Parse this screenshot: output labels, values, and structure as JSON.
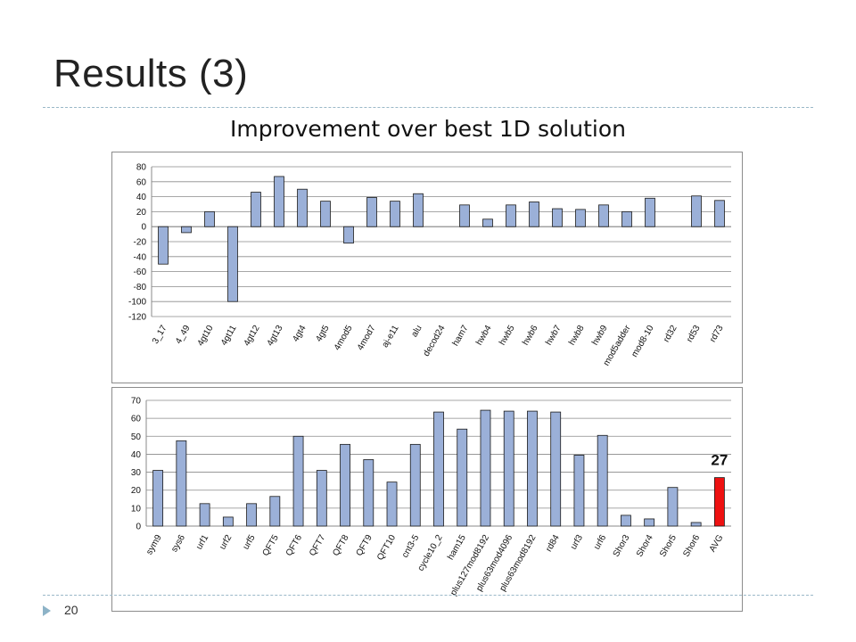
{
  "slide": {
    "title": "Results (3)",
    "subtitle": "Improvement over best 1D solution",
    "page_number": "20"
  },
  "colors": {
    "bar_fill": "#9bb0d8",
    "bar_stroke": "#1a1a1a",
    "highlight_fill": "#ee1111",
    "grid": "#8a8a8a",
    "accent_rule": "#9ab8c8"
  },
  "chart_data": [
    {
      "type": "bar",
      "grid": true,
      "ylim": [
        -120,
        80
      ],
      "yticks": [
        -120,
        -100,
        -80,
        -60,
        -40,
        -20,
        0,
        20,
        40,
        60,
        80
      ],
      "categories": [
        "3_17",
        "4_49",
        "4gt10",
        "4gt11",
        "4gt12",
        "4gt13",
        "4gt4",
        "4gt5",
        "4mod5",
        "4mod7",
        "aj-e11",
        "alu",
        "decod24",
        "ham7",
        "hwb4",
        "hwb5",
        "hwb6",
        "hwb7",
        "hwb8",
        "hwb9",
        "mod5adder",
        "mod8-10",
        "rd32",
        "rd53",
        "rd73"
      ],
      "values": [
        -50,
        -8,
        20,
        -100,
        46,
        67,
        50,
        34,
        -22,
        39,
        34,
        44,
        0,
        29,
        10,
        29,
        33,
        24,
        23,
        29,
        20,
        38,
        0,
        41,
        35
      ]
    },
    {
      "type": "bar",
      "grid": true,
      "ylim": [
        0,
        70
      ],
      "yticks": [
        0,
        10,
        20,
        30,
        40,
        50,
        60,
        70
      ],
      "categories": [
        "sym9",
        "sys6",
        "urf1",
        "urf2",
        "urf5",
        "QFT5",
        "QFT6",
        "QFT7",
        "QFT8",
        "QFT9",
        "QFT10",
        "cnt3-5",
        "cycle10_2",
        "ham15",
        "plus127mod8192",
        "plus63mod4096",
        "plus63mod8192",
        "rd84",
        "urf3",
        "urf6",
        "Shor3",
        "Shor4",
        "Shor5",
        "Shor6",
        "AVG"
      ],
      "values": [
        31,
        47.5,
        12.5,
        5,
        12.5,
        16.5,
        50,
        31,
        45.5,
        37,
        24.5,
        45.5,
        63.5,
        54,
        64.5,
        64,
        64,
        63.5,
        39.5,
        50.5,
        6,
        4,
        21.5,
        2,
        27
      ],
      "highlight_index": 24,
      "annotation": "27"
    }
  ]
}
